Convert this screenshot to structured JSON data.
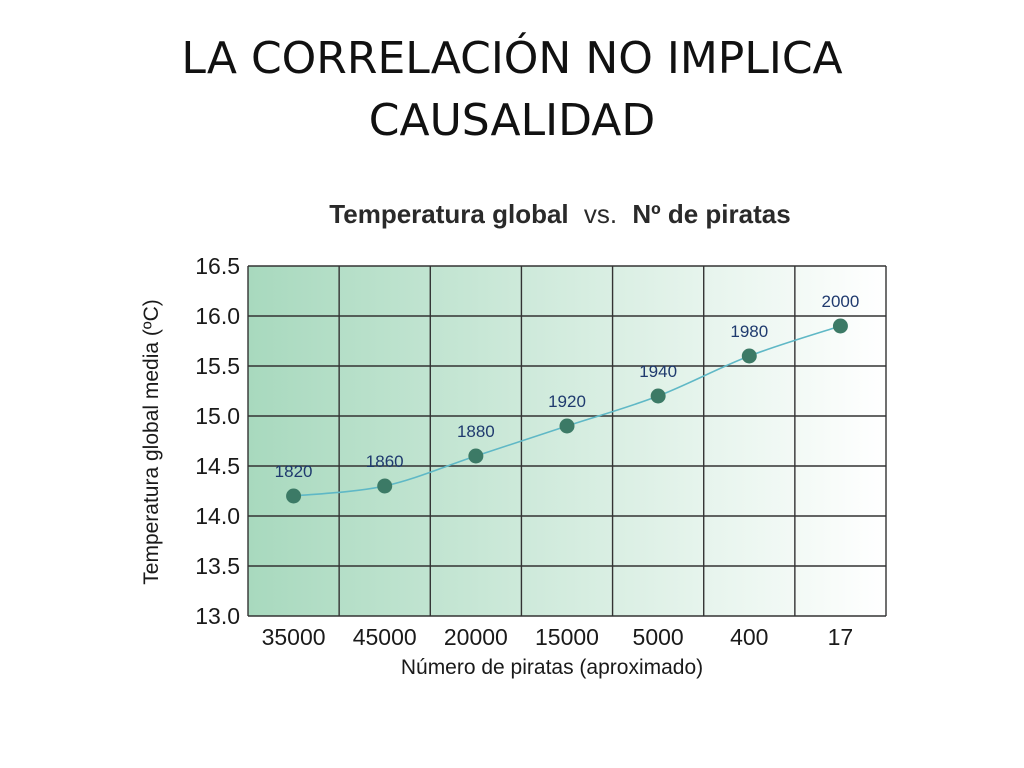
{
  "slide": {
    "title_line1": "LA CORRELACIÓN NO IMPLICA",
    "title_line2": "CAUSALIDAD"
  },
  "colors": {
    "marker": "#3c7a66",
    "line": "#5fb8c6",
    "label": "#1f3a6e",
    "grid": "#333333",
    "gradient_start": "#a8d9be",
    "gradient_end": "#ffffff"
  },
  "chart_data": {
    "type": "line",
    "title_part1": "Temperatura global",
    "title_vs": "vs.",
    "title_part2": "Nº de piratas",
    "xlabel": "Número de piratas (aproximado)",
    "ylabel": "Temperatura global media (ºC)",
    "categories": [
      "35000",
      "45000",
      "20000",
      "15000",
      "5000",
      "400",
      "17"
    ],
    "values": [
      14.2,
      14.3,
      14.6,
      14.9,
      15.2,
      15.6,
      15.9
    ],
    "point_labels": [
      "1820",
      "1860",
      "1880",
      "1920",
      "1940",
      "1980",
      "2000"
    ],
    "ylim": [
      13.0,
      16.5
    ],
    "yticks": [
      "13.0",
      "13.5",
      "14.0",
      "14.5",
      "15.0",
      "15.5",
      "16.0",
      "16.5"
    ],
    "grid": true,
    "smooth": true
  }
}
